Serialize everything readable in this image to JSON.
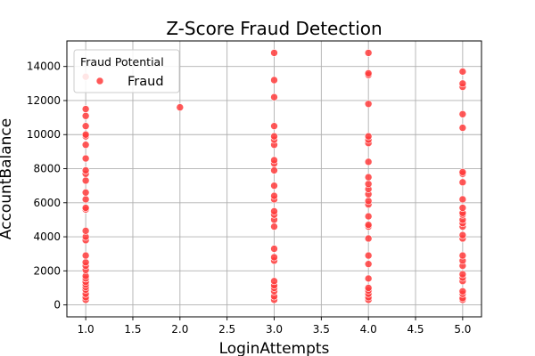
{
  "chart_data": {
    "type": "scatter",
    "title": "Z-Score Fraud Detection",
    "xlabel": "LoginAttempts",
    "ylabel": "AccountBalance",
    "xlim": [
      0.8,
      5.2
    ],
    "ylim": [
      -700,
      15500
    ],
    "x_ticks": [
      1.0,
      1.5,
      2.0,
      2.5,
      3.0,
      3.5,
      4.0,
      4.5,
      5.0
    ],
    "x_tick_labels": [
      "1.0",
      "1.5",
      "2.0",
      "2.5",
      "3.0",
      "3.5",
      "4.0",
      "4.5",
      "5.0"
    ],
    "y_ticks": [
      0,
      2000,
      4000,
      6000,
      8000,
      10000,
      12000,
      14000
    ],
    "y_tick_labels": [
      "0",
      "2000",
      "4000",
      "6000",
      "8000",
      "10000",
      "12000",
      "14000"
    ],
    "grid": true,
    "legend": {
      "title": "Fraud Potential",
      "placement": "top-left"
    },
    "series": [
      {
        "name": "Fraud",
        "color": "#ff3b3b",
        "points": [
          [
            1,
            300
          ],
          [
            1,
            450
          ],
          [
            1,
            650
          ],
          [
            1,
            900
          ],
          [
            1,
            1050
          ],
          [
            1,
            1200
          ],
          [
            1,
            1350
          ],
          [
            1,
            1550
          ],
          [
            1,
            1700
          ],
          [
            1,
            2050
          ],
          [
            1,
            2300
          ],
          [
            1,
            2500
          ],
          [
            1,
            2900
          ],
          [
            1,
            3800
          ],
          [
            1,
            4000
          ],
          [
            1,
            4350
          ],
          [
            1,
            5600
          ],
          [
            1,
            5700
          ],
          [
            1,
            6200
          ],
          [
            1,
            6600
          ],
          [
            1,
            7300
          ],
          [
            1,
            7700
          ],
          [
            1,
            7900
          ],
          [
            1,
            8600
          ],
          [
            1,
            9400
          ],
          [
            1,
            9900
          ],
          [
            1,
            10000
          ],
          [
            1,
            10500
          ],
          [
            1,
            11100
          ],
          [
            1,
            11500
          ],
          [
            1,
            13400
          ],
          [
            2,
            11600
          ],
          [
            3,
            300
          ],
          [
            3,
            500
          ],
          [
            3,
            800
          ],
          [
            3,
            1000
          ],
          [
            3,
            1150
          ],
          [
            3,
            1400
          ],
          [
            3,
            2600
          ],
          [
            3,
            2800
          ],
          [
            3,
            3300
          ],
          [
            3,
            4600
          ],
          [
            3,
            5000
          ],
          [
            3,
            5300
          ],
          [
            3,
            5500
          ],
          [
            3,
            6200
          ],
          [
            3,
            6400
          ],
          [
            3,
            7000
          ],
          [
            3,
            7900
          ],
          [
            3,
            8300
          ],
          [
            3,
            8500
          ],
          [
            3,
            9400
          ],
          [
            3,
            9700
          ],
          [
            3,
            9900
          ],
          [
            3,
            10500
          ],
          [
            3,
            12200
          ],
          [
            3,
            13200
          ],
          [
            3,
            14800
          ],
          [
            4,
            300
          ],
          [
            4,
            450
          ],
          [
            4,
            650
          ],
          [
            4,
            850
          ],
          [
            4,
            1000
          ],
          [
            4,
            1550
          ],
          [
            4,
            2400
          ],
          [
            4,
            2900
          ],
          [
            4,
            3900
          ],
          [
            4,
            4600
          ],
          [
            4,
            4700
          ],
          [
            4,
            5200
          ],
          [
            4,
            5900
          ],
          [
            4,
            6100
          ],
          [
            4,
            6500
          ],
          [
            4,
            6800
          ],
          [
            4,
            7100
          ],
          [
            4,
            7500
          ],
          [
            4,
            8400
          ],
          [
            4,
            9500
          ],
          [
            4,
            9700
          ],
          [
            4,
            9900
          ],
          [
            4,
            11800
          ],
          [
            4,
            13500
          ],
          [
            4,
            13600
          ],
          [
            4,
            14800
          ],
          [
            5,
            300
          ],
          [
            5,
            400
          ],
          [
            5,
            650
          ],
          [
            5,
            800
          ],
          [
            5,
            1400
          ],
          [
            5,
            1600
          ],
          [
            5,
            1800
          ],
          [
            5,
            2300
          ],
          [
            5,
            2600
          ],
          [
            5,
            2900
          ],
          [
            5,
            3900
          ],
          [
            5,
            4100
          ],
          [
            5,
            4600
          ],
          [
            5,
            4800
          ],
          [
            5,
            5000
          ],
          [
            5,
            5300
          ],
          [
            5,
            5400
          ],
          [
            5,
            5700
          ],
          [
            5,
            6200
          ],
          [
            5,
            7200
          ],
          [
            5,
            7700
          ],
          [
            5,
            7800
          ],
          [
            5,
            10400
          ],
          [
            5,
            11200
          ],
          [
            5,
            12800
          ],
          [
            5,
            13000
          ],
          [
            5,
            13700
          ]
        ]
      }
    ]
  }
}
